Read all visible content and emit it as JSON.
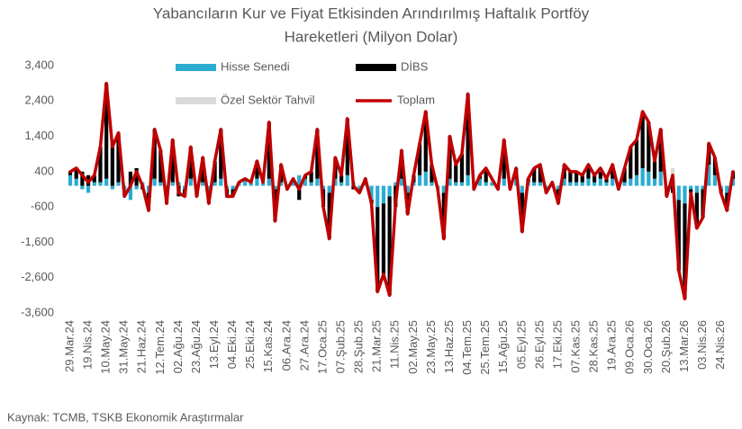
{
  "chart_data": {
    "type": "bar",
    "title": [
      "Yabancıların Kur ve Fiyat Etkisinden Arındırılmış Haftalık Portföy",
      "Hareketleri (Milyon Dolar)"
    ],
    "source": "Kaynak: TCMB, TSKB Ekonomik Araştırmalar",
    "categories": [
      "29.Mar.24",
      null,
      null,
      "19.Nis.24",
      null,
      null,
      "10.May.24",
      null,
      null,
      "31.May.24",
      null,
      null,
      "21.Haz.24",
      null,
      null,
      "12.Tem.24",
      null,
      null,
      "02.Ağu.24",
      null,
      null,
      "23.Ağu.24",
      null,
      null,
      "13.Eyl.24",
      null,
      null,
      "04.Eki.24",
      null,
      null,
      "25.Eki.24",
      null,
      null,
      "15.Kas.24",
      null,
      null,
      "06.Ara.24",
      null,
      null,
      "27.Ara.24",
      null,
      null,
      "17.Oca.25",
      null,
      null,
      "07.Şub.25",
      null,
      null,
      "28.Şub.25",
      null,
      null,
      "21.Mar.25",
      null,
      null,
      "11.Nis.25",
      null,
      null,
      "02.May.25",
      null,
      null,
      "23.May.25",
      null,
      null,
      "13.Haz.25",
      null,
      null,
      "04.Tem.25",
      null,
      null,
      "25.Tem.25",
      null,
      null,
      "15.Ağu.25",
      null,
      null,
      "05.Eyl.25",
      null,
      null,
      "26.Eyl.25",
      null,
      null,
      "17.Eki.25",
      null,
      null,
      "07.Kas.25",
      null,
      null,
      "28.Kas.25",
      null,
      null,
      "19.Ara.25",
      null,
      null,
      "09.Oca.26",
      null,
      null,
      "30.Oca.26",
      null,
      null,
      "20.Şub.26",
      null,
      null,
      "13.Mar.26",
      null,
      null,
      "03.Nis.26",
      null,
      null,
      "24.Nis.26",
      null,
      null
    ],
    "series": [
      {
        "name": "Hisse Senedi",
        "color": "#2bacd2",
        "kind": "bar",
        "values": [
          300,
          200,
          -100,
          -200,
          100,
          100,
          200,
          -100,
          100,
          -300,
          -400,
          -100,
          100,
          -200,
          200,
          100,
          -200,
          100,
          100,
          -100,
          200,
          -200,
          100,
          -200,
          100,
          200,
          -100,
          -100,
          100,
          200,
          100,
          200,
          100,
          200,
          -100,
          100,
          -100,
          200,
          300,
          200,
          100,
          200,
          -100,
          -200,
          200,
          100,
          300,
          100,
          -100,
          100,
          -400,
          -600,
          -500,
          -300,
          100,
          200,
          -200,
          100,
          300,
          400,
          100,
          -100,
          -200,
          200,
          100,
          100,
          300,
          -100,
          200,
          100,
          100,
          -100,
          200,
          -100,
          200,
          -200,
          100,
          100,
          100,
          -100,
          100,
          -100,
          200,
          100,
          100,
          100,
          200,
          100,
          200,
          100,
          200,
          -100,
          100,
          200,
          300,
          500,
          400,
          200,
          400,
          -100,
          200,
          -400,
          -500,
          -100,
          -200,
          -100,
          600,
          300,
          -100,
          -200,
          200
        ]
      },
      {
        "name": "DİBS",
        "color": "#000000",
        "kind": "bar",
        "values": [
          100,
          300,
          400,
          300,
          200,
          1000,
          2700,
          1200,
          1400,
          0,
          400,
          500,
          -100,
          -500,
          1400,
          900,
          -300,
          1200,
          -300,
          -200,
          900,
          -100,
          700,
          -300,
          600,
          1400,
          -200,
          -200,
          0,
          0,
          0,
          500,
          0,
          1600,
          -900,
          500,
          0,
          0,
          -400,
          100,
          300,
          1400,
          -500,
          -1300,
          600,
          200,
          1600,
          -100,
          -100,
          100,
          -100,
          -2400,
          -2000,
          -2800,
          -600,
          800,
          -600,
          200,
          900,
          1700,
          500,
          0,
          -1300,
          1200,
          500,
          800,
          2300,
          0,
          100,
          400,
          0,
          0,
          1100,
          0,
          300,
          -1100,
          100,
          400,
          500,
          -100,
          0,
          -400,
          400,
          300,
          300,
          200,
          400,
          200,
          200,
          100,
          400,
          0,
          400,
          900,
          1000,
          1600,
          1400,
          500,
          1200,
          -200,
          -200,
          -2000,
          -2700,
          -100,
          -1000,
          -800,
          600,
          500,
          -100,
          -500,
          200
        ]
      },
      {
        "name": "Özel Sektör Tahvil",
        "color": "#d9d9d9",
        "kind": "bar",
        "values": [
          0,
          0,
          0,
          0,
          0,
          0,
          0,
          0,
          0,
          0,
          0,
          0,
          0,
          0,
          0,
          0,
          0,
          0,
          0,
          0,
          0,
          0,
          0,
          0,
          0,
          0,
          0,
          0,
          0,
          0,
          0,
          0,
          0,
          0,
          0,
          0,
          0,
          0,
          0,
          0,
          0,
          0,
          0,
          0,
          0,
          0,
          0,
          0,
          0,
          0,
          0,
          0,
          0,
          0,
          0,
          0,
          0,
          0,
          0,
          0,
          0,
          0,
          0,
          0,
          0,
          0,
          0,
          0,
          0,
          0,
          100,
          0,
          0,
          0,
          0,
          0,
          0,
          0,
          0,
          0,
          0,
          0,
          0,
          0,
          0,
          0,
          0,
          0,
          100,
          0,
          0,
          0,
          0,
          0,
          0,
          0,
          0,
          0,
          0,
          0,
          300,
          0,
          0,
          0,
          0,
          0,
          0,
          0,
          0,
          0,
          0
        ]
      },
      {
        "name": "Toplam",
        "color": "#c00000",
        "kind": "line",
        "values": [
          400,
          500,
          300,
          100,
          300,
          1100,
          2900,
          1100,
          1500,
          -300,
          0,
          400,
          0,
          -700,
          1600,
          1000,
          -500,
          1300,
          -200,
          -300,
          1100,
          -300,
          800,
          -500,
          700,
          1600,
          -300,
          -300,
          100,
          200,
          100,
          700,
          100,
          1800,
          -1000,
          600,
          -100,
          200,
          -100,
          300,
          400,
          1600,
          -600,
          -1500,
          800,
          300,
          1900,
          0,
          -200,
          200,
          -500,
          -3000,
          -2500,
          -3100,
          -500,
          1000,
          -800,
          300,
          1200,
          2100,
          600,
          -100,
          -1500,
          1400,
          600,
          900,
          2600,
          -100,
          300,
          500,
          200,
          -100,
          1300,
          -100,
          500,
          -1300,
          200,
          500,
          600,
          -200,
          100,
          -500,
          600,
          400,
          400,
          300,
          600,
          300,
          500,
          200,
          600,
          -100,
          500,
          1100,
          1300,
          2100,
          1800,
          700,
          1600,
          -300,
          300,
          -2400,
          -3200,
          -200,
          -1200,
          -900,
          1200,
          800,
          -200,
          -700,
          400
        ]
      }
    ],
    "ylim": [
      -3600,
      3400
    ],
    "yticks": [
      {
        "value": 3400,
        "label": "3,400"
      },
      {
        "value": 2400,
        "label": "2,400"
      },
      {
        "value": 1400,
        "label": "1,400"
      },
      400,
      -600,
      {
        "value": -1600,
        "label": "-1,600"
      },
      {
        "value": -2600,
        "label": "-2,600"
      },
      {
        "value": -3600,
        "label": "-3,600"
      }
    ],
    "grid": false,
    "stacked": true,
    "legend": "upper center"
  }
}
